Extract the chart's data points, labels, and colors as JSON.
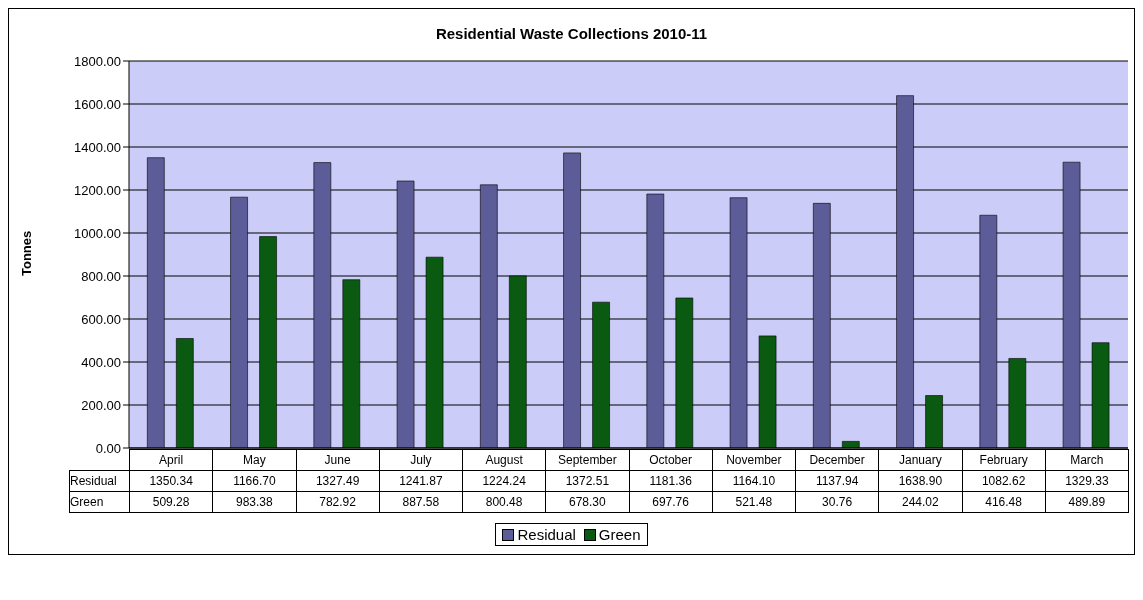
{
  "chart_data": {
    "type": "bar",
    "title": "Residential Waste Collections 2010-11",
    "ylabel": "Tonnes",
    "categories": [
      "April",
      "May",
      "June",
      "July",
      "August",
      "September",
      "October",
      "November",
      "December",
      "January",
      "February",
      "March"
    ],
    "series": [
      {
        "name": "Residual",
        "color": "#5c5c99",
        "values": [
          1350.34,
          1166.7,
          1327.49,
          1241.87,
          1224.24,
          1372.51,
          1181.36,
          1164.1,
          1137.94,
          1638.9,
          1082.62,
          1329.33
        ],
        "value_labels": [
          "1350.34",
          "1166.70",
          "1327.49",
          "1241.87",
          "1224.24",
          "1372.51",
          "1181.36",
          "1164.10",
          "1137.94",
          "1638.90",
          "1082.62",
          "1329.33"
        ]
      },
      {
        "name": "Green",
        "color": "#0b5a12",
        "values": [
          509.28,
          983.38,
          782.92,
          887.58,
          800.48,
          678.3,
          697.76,
          521.48,
          30.76,
          244.02,
          416.48,
          489.89
        ],
        "value_labels": [
          "509.28",
          "983.38",
          "782.92",
          "887.58",
          "800.48",
          "678.30",
          "697.76",
          "521.48",
          "30.76",
          "244.02",
          "416.48",
          "489.89"
        ]
      }
    ],
    "ylim": [
      0,
      1800
    ],
    "yticks": [
      {
        "value": 0,
        "label": "0.00"
      },
      {
        "value": 200,
        "label": "200.00"
      },
      {
        "value": 400,
        "label": "400.00"
      },
      {
        "value": 600,
        "label": "600.00"
      },
      {
        "value": 800,
        "label": "800.00"
      },
      {
        "value": 1000,
        "label": "1000.00"
      },
      {
        "value": 1200,
        "label": "1200.00"
      },
      {
        "value": 1400,
        "label": "1400.00"
      },
      {
        "value": 1600,
        "label": "1600.00"
      },
      {
        "value": 1800,
        "label": "1800.00"
      }
    ],
    "grid": "y",
    "legend": "bottom"
  }
}
